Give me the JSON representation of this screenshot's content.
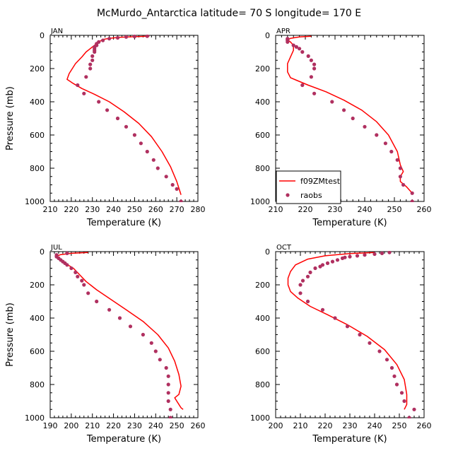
{
  "title": "McMurdo_Antarctica  latitude= 70 S longitude= 170 E",
  "colors": {
    "model": "#ff0000",
    "obs": "#b03060"
  },
  "legend": {
    "model_label": "f09ZMtest",
    "obs_label": "raobs"
  },
  "chart_data": [
    {
      "type": "line",
      "panel": "JAN",
      "xlabel": "Temperature (K)",
      "ylabel": "Pressure (mb)",
      "xlim": [
        210,
        280
      ],
      "ylim": [
        1000,
        0
      ],
      "xticks": [
        210,
        220,
        230,
        240,
        250,
        260,
        270,
        280
      ],
      "yticks": [
        0,
        200,
        400,
        600,
        800,
        1000
      ],
      "series": [
        {
          "name": "f09ZMtest",
          "style": "line",
          "points": [
            [
              257,
              5
            ],
            [
              250,
              8
            ],
            [
              243,
              12
            ],
            [
              238,
              18
            ],
            [
              235,
              25
            ],
            [
              233,
              40
            ],
            [
              231,
              60
            ],
            [
              229,
              80
            ],
            [
              227,
              100
            ],
            [
              225,
              130
            ],
            [
              222,
              170
            ],
            [
              219,
              230
            ],
            [
              218,
              265
            ],
            [
              221,
              290
            ],
            [
              225,
              320
            ],
            [
              231,
              355
            ],
            [
              238,
              400
            ],
            [
              245,
              460
            ],
            [
              252,
              530
            ],
            [
              258,
              610
            ],
            [
              263,
              700
            ],
            [
              267,
              790
            ],
            [
              270,
              880
            ],
            [
              272,
              960
            ]
          ]
        },
        {
          "name": "raobs",
          "style": "points",
          "points": [
            [
              256,
              5
            ],
            [
              250,
              7
            ],
            [
              246,
              10
            ],
            [
              242,
              15
            ],
            [
              238,
              20
            ],
            [
              235,
              30
            ],
            [
              233,
              40
            ],
            [
              232,
              50
            ],
            [
              232,
              60
            ],
            [
              231,
              70
            ],
            [
              231,
              80
            ],
            [
              231,
              90
            ],
            [
              231,
              100
            ],
            [
              230,
              125
            ],
            [
              230,
              150
            ],
            [
              229,
              175
            ],
            [
              229,
              200
            ],
            [
              227,
              250
            ],
            [
              223,
              300
            ],
            [
              226,
              350
            ],
            [
              233,
              400
            ],
            [
              237,
              450
            ],
            [
              242,
              500
            ],
            [
              246,
              550
            ],
            [
              250,
              600
            ],
            [
              253,
              650
            ],
            [
              256,
              700
            ],
            [
              259,
              750
            ],
            [
              261,
              800
            ],
            [
              265,
              850
            ],
            [
              268,
              900
            ],
            [
              270,
              925
            ],
            [
              272,
              1000
            ]
          ]
        }
      ]
    },
    {
      "type": "line",
      "panel": "APR",
      "xlabel": "Temperature (K)",
      "ylabel": "",
      "xlim": [
        210,
        260
      ],
      "ylim": [
        1000,
        0
      ],
      "xticks": [
        210,
        220,
        230,
        240,
        250,
        260
      ],
      "yticks": [
        0,
        200,
        400,
        600,
        800,
        1000
      ],
      "series": [
        {
          "name": "f09ZMtest",
          "style": "line",
          "points": [
            [
              222,
              5
            ],
            [
              218,
              10
            ],
            [
              215,
              18
            ],
            [
              214,
              28
            ],
            [
              215,
              40
            ],
            [
              216,
              60
            ],
            [
              216,
              90
            ],
            [
              215,
              130
            ],
            [
              214,
              170
            ],
            [
              214,
              220
            ],
            [
              215,
              255
            ],
            [
              217,
              270
            ],
            [
              221,
              300
            ],
            [
              227,
              340
            ],
            [
              233,
              390
            ],
            [
              239,
              450
            ],
            [
              244,
              520
            ],
            [
              248,
              600
            ],
            [
              251,
              700
            ],
            [
              252,
              780
            ],
            [
              253,
              820
            ],
            [
              252,
              850
            ],
            [
              252,
              880
            ],
            [
              254,
              910
            ],
            [
              256,
              950
            ]
          ]
        },
        {
          "name": "raobs",
          "style": "points",
          "points": [
            [
              214,
              20
            ],
            [
              214,
              25
            ],
            [
              214,
              30
            ],
            [
              214,
              40
            ],
            [
              216,
              60
            ],
            [
              217,
              70
            ],
            [
              218,
              80
            ],
            [
              219,
              100
            ],
            [
              221,
              125
            ],
            [
              222,
              150
            ],
            [
              223,
              175
            ],
            [
              223,
              200
            ],
            [
              222,
              250
            ],
            [
              219,
              300
            ],
            [
              223,
              350
            ],
            [
              229,
              400
            ],
            [
              233,
              450
            ],
            [
              236,
              500
            ],
            [
              240,
              550
            ],
            [
              244,
              600
            ],
            [
              247,
              650
            ],
            [
              249,
              700
            ],
            [
              251,
              750
            ],
            [
              252,
              800
            ],
            [
              252,
              850
            ],
            [
              253,
              900
            ],
            [
              256,
              950
            ],
            [
              256,
              1000
            ]
          ]
        }
      ]
    },
    {
      "type": "line",
      "panel": "JUL",
      "xlabel": "Temperature (K)",
      "ylabel": "Pressure (mb)",
      "xlim": [
        190,
        260
      ],
      "ylim": [
        1000,
        0
      ],
      "xticks": [
        190,
        200,
        210,
        220,
        230,
        240,
        250,
        260
      ],
      "yticks": [
        0,
        200,
        400,
        600,
        800,
        1000
      ],
      "series": [
        {
          "name": "f09ZMtest",
          "style": "line",
          "points": [
            [
              208,
              5
            ],
            [
              200,
              10
            ],
            [
              195,
              18
            ],
            [
              193,
              28
            ],
            [
              194,
              45
            ],
            [
              197,
              70
            ],
            [
              201,
              100
            ],
            [
              204,
              140
            ],
            [
              207,
              180
            ],
            [
              212,
              230
            ],
            [
              219,
              290
            ],
            [
              226,
              350
            ],
            [
              234,
              420
            ],
            [
              241,
              500
            ],
            [
              246,
              580
            ],
            [
              249,
              660
            ],
            [
              251,
              740
            ],
            [
              252,
              810
            ],
            [
              251,
              860
            ],
            [
              249,
              880
            ],
            [
              250,
              900
            ],
            [
              252,
              940
            ],
            [
              253,
              950
            ]
          ]
        },
        {
          "name": "raobs",
          "style": "points",
          "points": [
            [
              198,
              10
            ],
            [
              193,
              20
            ],
            [
              193,
              30
            ],
            [
              194,
              40
            ],
            [
              195,
              50
            ],
            [
              196,
              60
            ],
            [
              197,
              70
            ],
            [
              198,
              80
            ],
            [
              200,
              100
            ],
            [
              202,
              125
            ],
            [
              203,
              150
            ],
            [
              205,
              175
            ],
            [
              206,
              200
            ],
            [
              208,
              250
            ],
            [
              212,
              300
            ],
            [
              218,
              350
            ],
            [
              223,
              400
            ],
            [
              228,
              450
            ],
            [
              234,
              500
            ],
            [
              238,
              550
            ],
            [
              240,
              600
            ],
            [
              242,
              650
            ],
            [
              245,
              700
            ],
            [
              246,
              750
            ],
            [
              246,
              800
            ],
            [
              246,
              850
            ],
            [
              246,
              900
            ],
            [
              247,
              950
            ],
            [
              247,
              1000
            ]
          ]
        }
      ]
    },
    {
      "type": "line",
      "panel": "OCT",
      "xlabel": "Temperature (K)",
      "ylabel": "",
      "xlim": [
        200,
        260
      ],
      "ylim": [
        1000,
        0
      ],
      "xticks": [
        200,
        210,
        220,
        230,
        240,
        250,
        260
      ],
      "yticks": [
        0,
        200,
        400,
        600,
        800,
        1000
      ],
      "series": [
        {
          "name": "f09ZMtest",
          "style": "line",
          "points": [
            [
              240,
              5
            ],
            [
              230,
              12
            ],
            [
              220,
              25
            ],
            [
              213,
              45
            ],
            [
              208,
              80
            ],
            [
              206,
              120
            ],
            [
              205,
              160
            ],
            [
              205,
              200
            ],
            [
              206,
              240
            ],
            [
              209,
              280
            ],
            [
              214,
              330
            ],
            [
              221,
              380
            ],
            [
              229,
              440
            ],
            [
              237,
              510
            ],
            [
              244,
              590
            ],
            [
              249,
              680
            ],
            [
              252,
              770
            ],
            [
              253,
              860
            ],
            [
              253,
              920
            ],
            [
              252,
              950
            ]
          ]
        },
        {
          "name": "raobs",
          "style": "points",
          "points": [
            [
              246,
              5
            ],
            [
              243,
              10
            ],
            [
              240,
              15
            ],
            [
              236,
              20
            ],
            [
              233,
              25
            ],
            [
              230,
              30
            ],
            [
              228,
              35
            ],
            [
              227,
              40
            ],
            [
              225,
              50
            ],
            [
              223,
              60
            ],
            [
              221,
              70
            ],
            [
              219,
              80
            ],
            [
              218,
              90
            ],
            [
              216,
              100
            ],
            [
              214,
              125
            ],
            [
              213,
              150
            ],
            [
              211,
              175
            ],
            [
              210,
              200
            ],
            [
              210,
              250
            ],
            [
              213,
              300
            ],
            [
              219,
              350
            ],
            [
              224,
              400
            ],
            [
              229,
              450
            ],
            [
              234,
              500
            ],
            [
              238,
              550
            ],
            [
              242,
              600
            ],
            [
              245,
              650
            ],
            [
              247,
              700
            ],
            [
              248,
              750
            ],
            [
              249,
              800
            ],
            [
              251,
              850
            ],
            [
              252,
              900
            ],
            [
              256,
              950
            ],
            [
              254,
              1000
            ]
          ]
        }
      ]
    }
  ]
}
